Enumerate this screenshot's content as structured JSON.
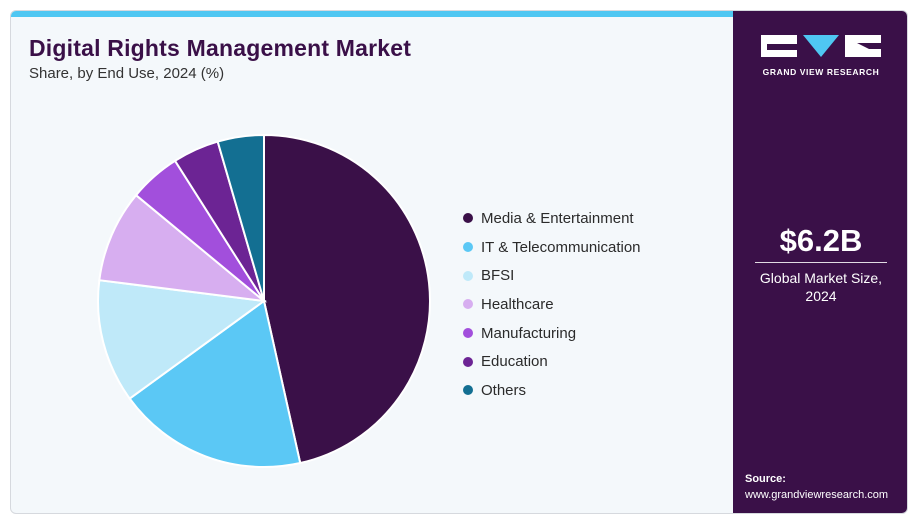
{
  "header": {
    "title": "Digital Rights Management Market",
    "subtitle": "Share, by End Use, 2024 (%)"
  },
  "chart_data": {
    "type": "pie",
    "title": "Digital Rights Management Market",
    "subtitle": "Share, by End Use, 2024 (%)",
    "categories": [
      "Media & Entertainment",
      "IT & Telecommunication",
      "BFSI",
      "Healthcare",
      "Manufacturing",
      "Education",
      "Others"
    ],
    "values": [
      46.5,
      18.5,
      12.0,
      9.0,
      5.0,
      4.5,
      4.5
    ],
    "colors": [
      "#3a1048",
      "#5bc8f5",
      "#bfe9f9",
      "#d7aef0",
      "#a24fdc",
      "#6c2494",
      "#136f92"
    ],
    "legend_position": "right"
  },
  "side_panel": {
    "brand": "GRAND VIEW RESEARCH",
    "market_size_value": "$6.2B",
    "market_size_label": "Global Market Size, 2024",
    "source_title": "Source:",
    "source_url": "www.grandviewresearch.com"
  },
  "colors": {
    "accent": "#4fc7f2",
    "panel": "#3a1048",
    "title": "#3a1048"
  }
}
